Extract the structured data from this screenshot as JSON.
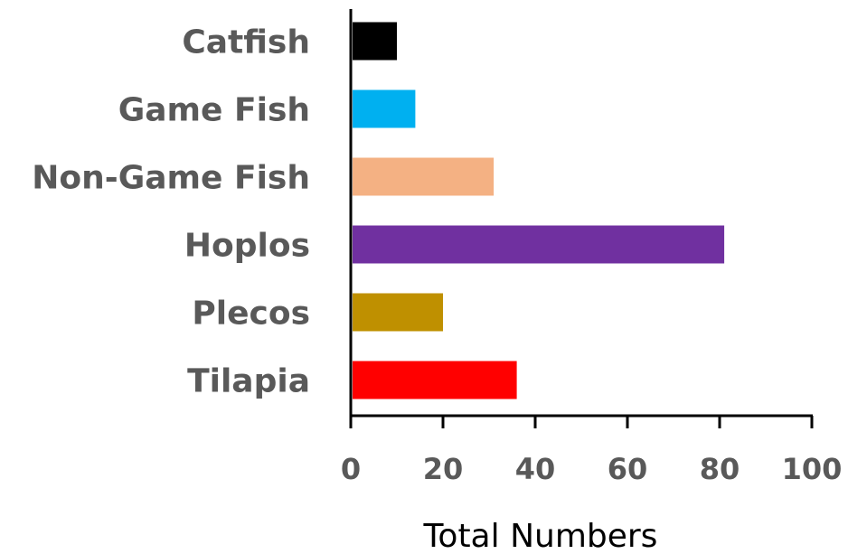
{
  "chart_data": {
    "type": "bar",
    "orientation": "horizontal",
    "title": "",
    "xlabel": "Total Numbers",
    "ylabel": "",
    "categories": [
      "Catfish",
      "Game Fish",
      "Non-Game Fish",
      "Hoplos",
      "Plecos",
      "Tilapia"
    ],
    "values": [
      10,
      14,
      31,
      81,
      20,
      36
    ],
    "colors": [
      "#000000",
      "#00b0f0",
      "#f4b183",
      "#7030a0",
      "#bf9000",
      "#ff0000"
    ],
    "xlim": [
      0,
      100
    ],
    "xticks": [
      0,
      20,
      40,
      60,
      80,
      100
    ],
    "grid": false,
    "legend": "none"
  }
}
